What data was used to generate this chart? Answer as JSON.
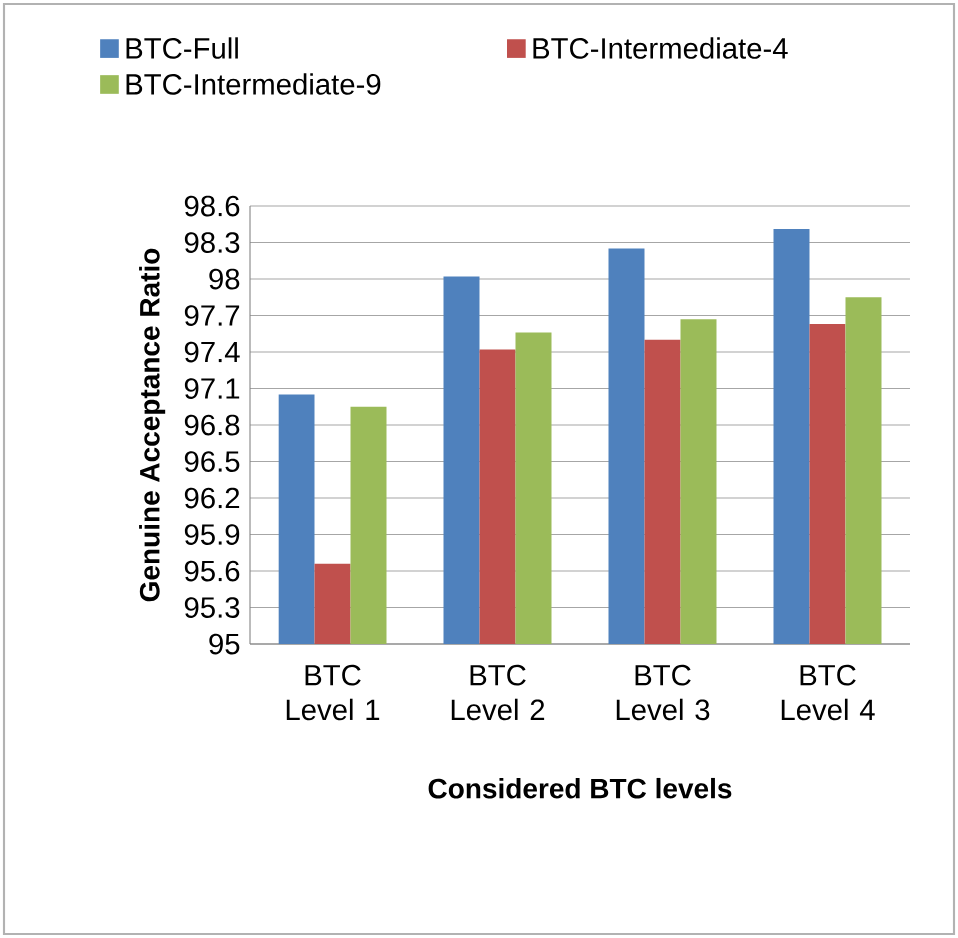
{
  "chart_data": {
    "type": "bar",
    "xlabel": "Considered BTC levels",
    "ylabel": "Genuine Acceptance Ratio",
    "categories": [
      "BTC Level 1",
      "BTC Level 2",
      "BTC Level 3",
      "BTC Level 4"
    ],
    "series": [
      {
        "name": "BTC-Full",
        "color": "#4f81bd",
        "values": [
          97.05,
          98.02,
          98.25,
          98.41
        ]
      },
      {
        "name": "BTC-Intermediate-4",
        "color": "#c0504d",
        "values": [
          95.66,
          97.42,
          97.5,
          97.63
        ]
      },
      {
        "name": "BTC-Intermediate-9",
        "color": "#9bbb59",
        "values": [
          96.95,
          97.56,
          97.67,
          97.85
        ]
      }
    ],
    "ylim": [
      95,
      98.6
    ],
    "yticks": [
      95,
      95.3,
      95.6,
      95.9,
      96.2,
      96.5,
      96.8,
      97.1,
      97.4,
      97.7,
      98,
      98.3,
      98.6
    ],
    "grid": "y",
    "legend": "top"
  }
}
